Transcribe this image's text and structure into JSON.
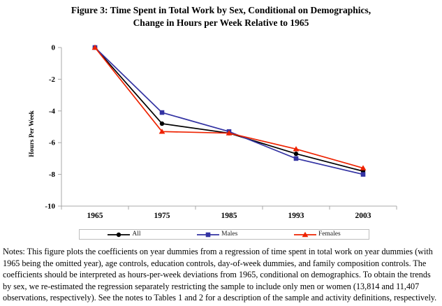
{
  "title": {
    "line1": "Figure 3: Time Spent in Total Work by Sex, Conditional on Demographics,",
    "line2": "Change in Hours per Week Relative to 1965"
  },
  "chart_data": {
    "type": "line",
    "categories": [
      "1965",
      "1975",
      "1985",
      "1993",
      "2003"
    ],
    "xlabel": "",
    "ylabel": "Hours Per Week",
    "ylim": [
      -10,
      0
    ],
    "yticks": [
      0,
      -2,
      -4,
      -6,
      -8,
      -10
    ],
    "grid": false,
    "legend_position": "bottom",
    "axis_color": "#a8a8a8",
    "series": [
      {
        "name": "All",
        "color": "#000000",
        "marker": "circle",
        "values": [
          0,
          -4.8,
          -5.4,
          -6.7,
          -7.8
        ]
      },
      {
        "name": "Males",
        "color": "#3333a3",
        "marker": "square",
        "values": [
          0,
          -4.1,
          -5.3,
          -7.0,
          -8.0
        ]
      },
      {
        "name": "Females",
        "color": "#ee2200",
        "marker": "triangle",
        "values": [
          0,
          -5.3,
          -5.4,
          -6.4,
          -7.6
        ]
      }
    ]
  },
  "notes": "Notes: This figure plots the coefficients on year dummies from a regression of time spent in total work on year dummies (with 1965 being the omitted year), age controls, education controls, day-of-week dummies, and family composition controls. The coefficients should be interpreted as hours-per-week deviations from 1965, conditional on demographics. To obtain the trends by sex, we re-estimated the regression separately restricting the sample to include only men or women (13,814 and 11,407 observations, respectively). See the notes to Tables 1 and 2 for a description of the sample and activity definitions, respectively."
}
